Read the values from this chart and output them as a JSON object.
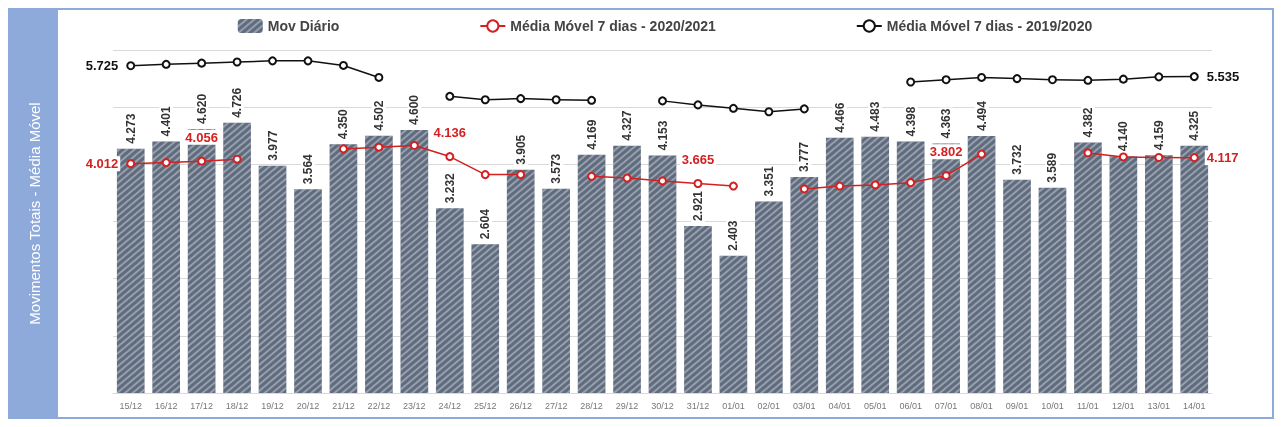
{
  "chart_data": {
    "type": "bar",
    "ylabel": "Movimentos Totais - Média Móvel",
    "categories": [
      "15/12",
      "16/12",
      "17/12",
      "18/12",
      "19/12",
      "20/12",
      "21/12",
      "22/12",
      "23/12",
      "24/12",
      "25/12",
      "26/12",
      "27/12",
      "28/12",
      "29/12",
      "30/12",
      "31/12",
      "01/01",
      "02/01",
      "03/01",
      "04/01",
      "05/01",
      "06/01",
      "07/01",
      "08/01",
      "09/01",
      "10/01",
      "11/01",
      "12/01",
      "13/01",
      "14/01"
    ],
    "series": [
      {
        "name": "Mov Diário",
        "color": "#5f6b7e",
        "value_labels": [
          "4.273",
          "4.401",
          "4.620",
          "4.726",
          "3.977",
          "3.564",
          "4.350",
          "4.502",
          "4.600",
          "3.232",
          "2.604",
          "3.905",
          "3.573",
          "4.169",
          "4.327",
          "4.153",
          "2.921",
          "2.403",
          "3.351",
          "3.777",
          "4.466",
          "4.483",
          "4.398",
          "4.363",
          "4.494",
          "3.732",
          "3.589",
          "4.382",
          "4.140",
          "4.159",
          "4.325"
        ],
        "values": [
          4.273,
          4.401,
          4.62,
          4.726,
          3.977,
          3.564,
          4.35,
          4.502,
          4.6,
          3.232,
          2.604,
          3.905,
          3.573,
          4.169,
          4.327,
          4.153,
          2.921,
          2.403,
          3.351,
          3.777,
          4.466,
          4.483,
          4.398,
          4.363,
          4.494,
          3.732,
          3.589,
          4.382,
          4.14,
          4.159,
          4.325
        ]
      },
      {
        "name": "Média Móvel 7 dias - 2020/2021",
        "type": "line",
        "color": "#d42020",
        "marker": "circle",
        "line_style": "solid",
        "values": [
          4.012,
          4.03,
          4.056,
          4.09,
          null,
          null,
          4.27,
          4.3,
          4.33,
          4.136,
          3.82,
          3.82,
          null,
          3.79,
          3.76,
          3.71,
          3.665,
          3.62,
          null,
          3.57,
          3.62,
          3.64,
          3.68,
          3.802,
          4.18,
          null,
          null,
          4.2,
          4.13,
          4.12,
          4.117
        ],
        "value_labels": [
          "4.012",
          null,
          "4.056",
          null,
          null,
          null,
          null,
          null,
          null,
          "4.136",
          null,
          null,
          null,
          null,
          null,
          null,
          "3.665",
          null,
          null,
          null,
          null,
          null,
          null,
          "3.802",
          null,
          null,
          null,
          null,
          null,
          null,
          "4.117"
        ]
      },
      {
        "name": "Média Móvel 7 dias - 2019/2020",
        "type": "line",
        "color": "#111111",
        "marker": "circle",
        "line_style": "solid",
        "values": [
          5.725,
          5.75,
          5.77,
          5.79,
          5.81,
          5.81,
          5.73,
          5.52,
          null,
          5.19,
          5.13,
          5.15,
          5.13,
          5.12,
          null,
          5.11,
          5.04,
          4.98,
          4.92,
          4.97,
          null,
          null,
          5.44,
          5.48,
          5.52,
          5.5,
          5.48,
          5.47,
          5.49,
          5.53,
          5.535
        ],
        "value_labels": [
          "5.725",
          null,
          null,
          null,
          null,
          null,
          null,
          null,
          null,
          null,
          null,
          null,
          null,
          null,
          null,
          null,
          null,
          null,
          null,
          null,
          null,
          null,
          null,
          null,
          null,
          null,
          null,
          null,
          null,
          null,
          "5.535"
        ]
      }
    ],
    "ylim": [
      0,
      6
    ],
    "yticks": [
      {
        "value": 0,
        "label": null
      },
      {
        "value": 1,
        "label": null
      },
      {
        "value": 2,
        "label": null
      },
      {
        "value": 3,
        "label": null
      },
      {
        "value": 4,
        "label": null
      },
      {
        "value": 5,
        "label": null
      },
      {
        "value": 6,
        "label": null
      }
    ],
    "tick_labels": "x",
    "grid": "y",
    "legend": "top"
  }
}
